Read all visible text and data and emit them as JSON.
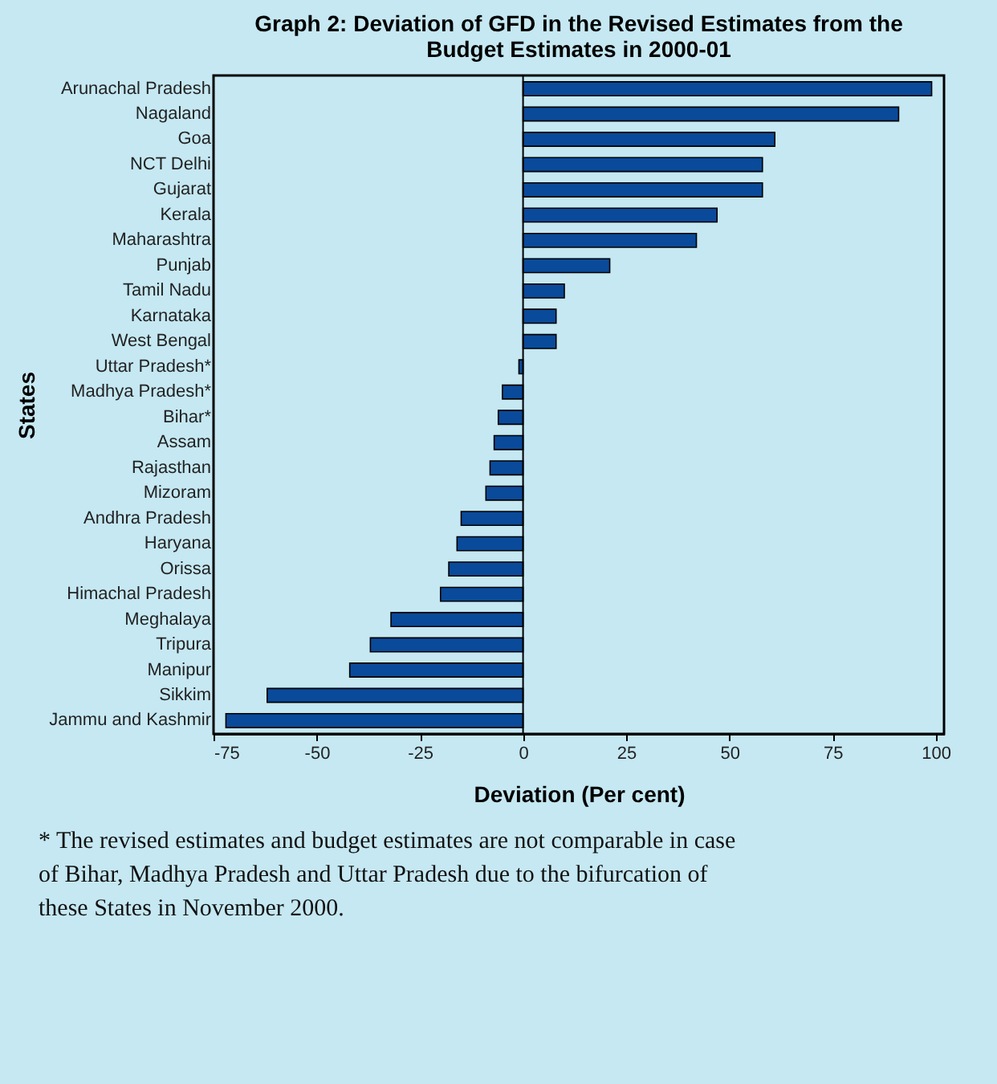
{
  "chart_data": {
    "type": "bar",
    "orientation": "horizontal",
    "title": "Graph 2: Deviation of GFD in the Revised Estimates from the Budget Estimates in 2000-01",
    "xlabel": "Deviation (Per cent)",
    "ylabel": "States",
    "categories": [
      "Arunachal Pradesh",
      "Nagaland",
      "Goa",
      "NCT Delhi",
      "Gujarat",
      "Kerala",
      "Maharashtra",
      "Punjab",
      "Tamil Nadu",
      "Karnataka",
      "West Bengal",
      "Uttar Pradesh*",
      "Madhya Pradesh*",
      "Bihar*",
      "Assam",
      "Rajasthan",
      "Mizoram",
      "Andhra Pradesh",
      "Haryana",
      "Orissa",
      "Himachal Pradesh",
      "Meghalaya",
      "Tripura",
      "Manipur",
      "Sikkim",
      "Jammu and Kashmir"
    ],
    "values": [
      99,
      91,
      61,
      58,
      58,
      47,
      42,
      21,
      10,
      8,
      8,
      -1,
      -5,
      -6,
      -7,
      -8,
      -9,
      -15,
      -16,
      -18,
      -20,
      -32,
      -37,
      -42,
      -62,
      -72
    ],
    "xlim": [
      -75,
      102
    ],
    "xticks": [
      -75,
      -50,
      -25,
      0,
      25,
      50,
      75,
      100
    ],
    "annotations": [
      "* The revised estimates and budget estimates are not comparable in case of Bihar, Madhya Pradesh and Uttar Pradesh due to the bifurcation of these States in November 2000."
    ],
    "color": "#0a4a9a"
  }
}
